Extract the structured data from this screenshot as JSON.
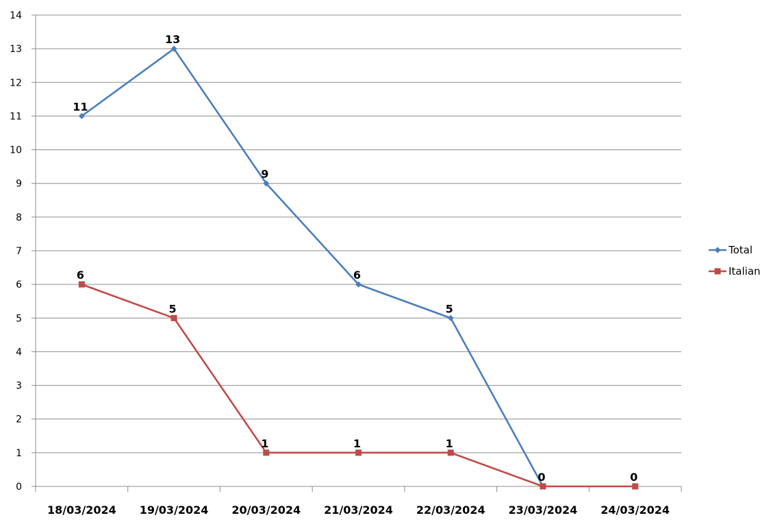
{
  "chart_data": {
    "type": "line",
    "categories": [
      "18/03/2024",
      "19/03/2024",
      "20/03/2024",
      "21/03/2024",
      "22/03/2024",
      "23/03/2024",
      "24/03/2024"
    ],
    "series": [
      {
        "name": "Total",
        "values": [
          11,
          13,
          9,
          6,
          5,
          0,
          null
        ],
        "color": "#4a7ebb",
        "marker": "diamond",
        "labels": [
          "11",
          "13",
          "9",
          "6",
          "5",
          "",
          ""
        ]
      },
      {
        "name": "Italian",
        "values": [
          6,
          5,
          1,
          1,
          1,
          0,
          0
        ],
        "color": "#be4b48",
        "marker": "square",
        "labels": [
          "6",
          "5",
          "1",
          "1",
          "1",
          "0",
          "0"
        ]
      }
    ],
    "ylim": [
      0,
      14
    ],
    "yticks": [
      "0",
      "1",
      "2",
      "3",
      "4",
      "5",
      "6",
      "7",
      "8",
      "9",
      "10",
      "11",
      "12",
      "13",
      "14"
    ],
    "grid": true,
    "legend": "right",
    "title": "",
    "xlabel": "",
    "ylabel": ""
  }
}
